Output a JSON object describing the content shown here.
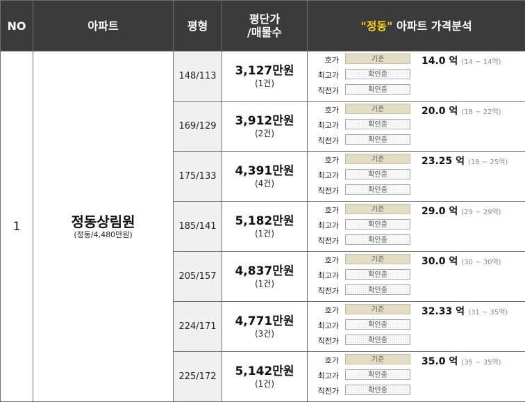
{
  "header": {
    "no": "NO",
    "apartment": "아파트",
    "size": "평형",
    "price_per_pyeong_line1": "평단가",
    "price_per_pyeong_line2": "/매물수",
    "analysis_highlight": "\"정동\"",
    "analysis_rest": " 아파트 가격분석"
  },
  "labels": {
    "asking": "호가",
    "highest": "최고가",
    "recent": "직전가",
    "standard_btn": "기준",
    "checking_btn": "확인중"
  },
  "row": {
    "no": "1",
    "apartment_name": "정동상림원",
    "apartment_sub": "(정동/4,480만원)"
  },
  "units": [
    {
      "size": "148/113",
      "price_per_pyeong": "3,127만원",
      "listings": "(1건)",
      "price": "14.0 억",
      "range": "(14 ~ 14억)"
    },
    {
      "size": "169/129",
      "price_per_pyeong": "3,912만원",
      "listings": "(2건)",
      "price": "20.0 억",
      "range": "(18 ~ 22억)"
    },
    {
      "size": "175/133",
      "price_per_pyeong": "4,391만원",
      "listings": "(4건)",
      "price": "23.25 억",
      "range": "(18 ~ 25억)"
    },
    {
      "size": "185/141",
      "price_per_pyeong": "5,182만원",
      "listings": "(1건)",
      "price": "29.0 억",
      "range": "(29 ~ 29억)"
    },
    {
      "size": "205/157",
      "price_per_pyeong": "4,837만원",
      "listings": "(1건)",
      "price": "30.0 억",
      "range": "(30 ~ 30억)"
    },
    {
      "size": "224/171",
      "price_per_pyeong": "4,771만원",
      "listings": "(3건)",
      "price": "32.33 억",
      "range": "(31 ~ 35억)"
    },
    {
      "size": "225/172",
      "price_per_pyeong": "5,142만원",
      "listings": "(1건)",
      "price": "35.0 억",
      "range": "(35 ~ 35억)"
    }
  ],
  "colors": {
    "header_bg": "#3b3b3b",
    "header_highlight": "#ffd21a",
    "alt_row_bg": "#f0f0f0",
    "standard_btn_bg": "#e3ddc5"
  }
}
